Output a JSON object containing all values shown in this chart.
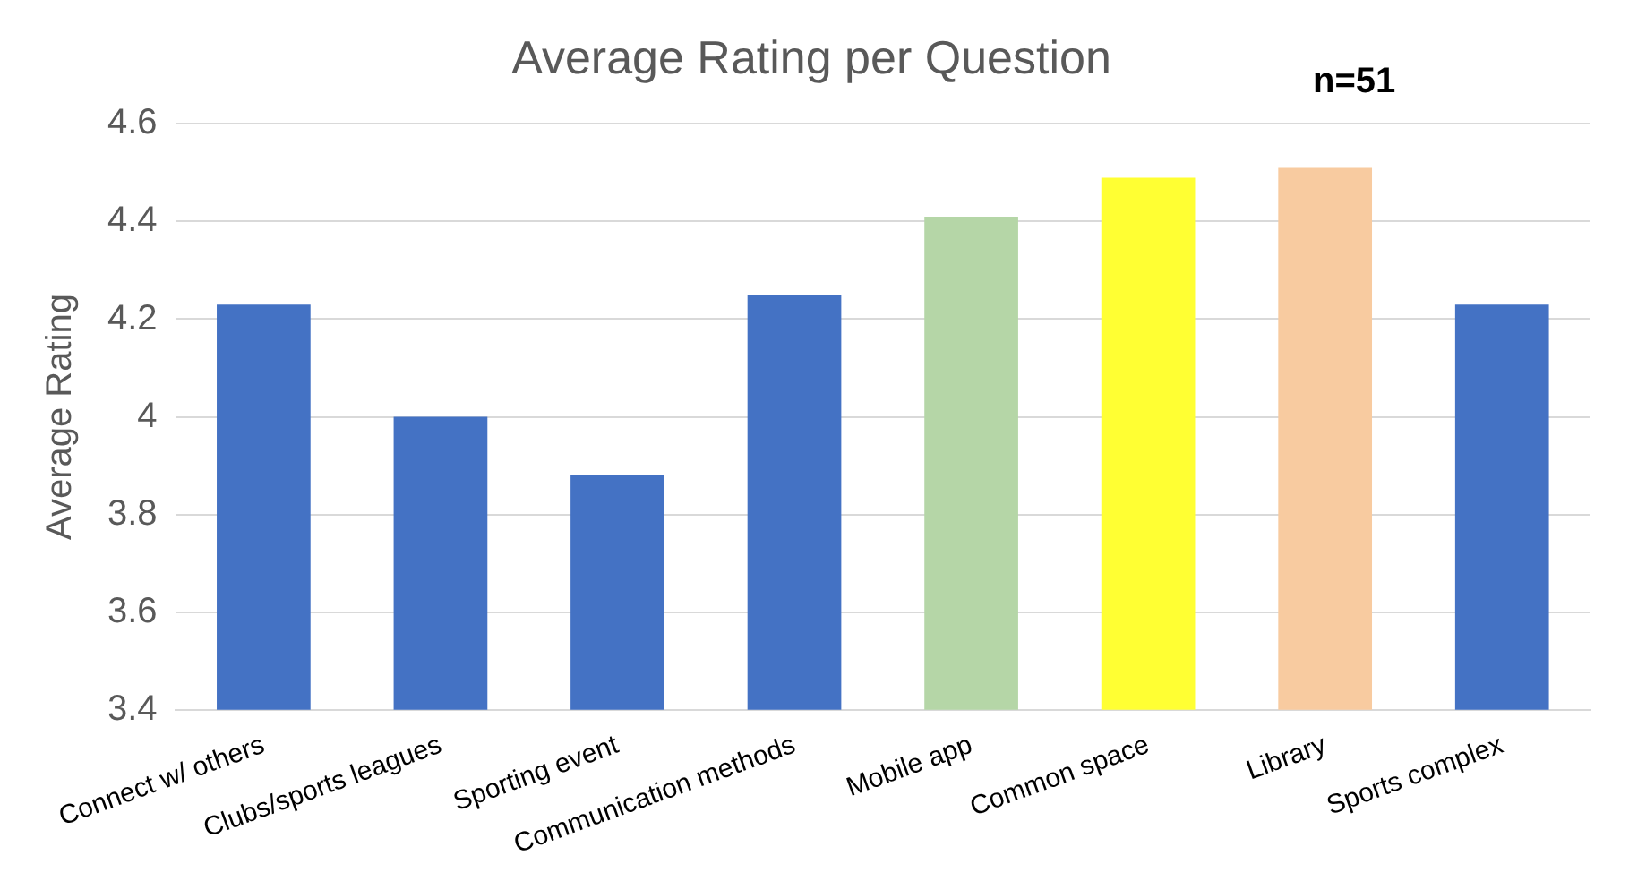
{
  "chart_data": {
    "type": "bar",
    "title": "Average Rating per Question",
    "ylabel": "Average Rating",
    "annotations": [
      "n=51"
    ],
    "categories": [
      "Connect w/ others",
      "Clubs/sports leagues",
      "Sporting event",
      "Communication methods",
      "Mobile app",
      "Common space",
      "Library",
      "Sports complex"
    ],
    "values": [
      4.23,
      4.0,
      3.88,
      4.25,
      4.41,
      4.49,
      4.51,
      4.23
    ],
    "colors": [
      "#4472c4",
      "#4472c4",
      "#4472c4",
      "#4472c4",
      "#b5d6a7",
      "#ffff33",
      "#f8cba0",
      "#4472c4"
    ],
    "ylim": [
      3.4,
      4.6
    ],
    "yticks": [
      3.4,
      3.6,
      3.8,
      4,
      4.2,
      4.4,
      4.6
    ],
    "grid": "y"
  }
}
